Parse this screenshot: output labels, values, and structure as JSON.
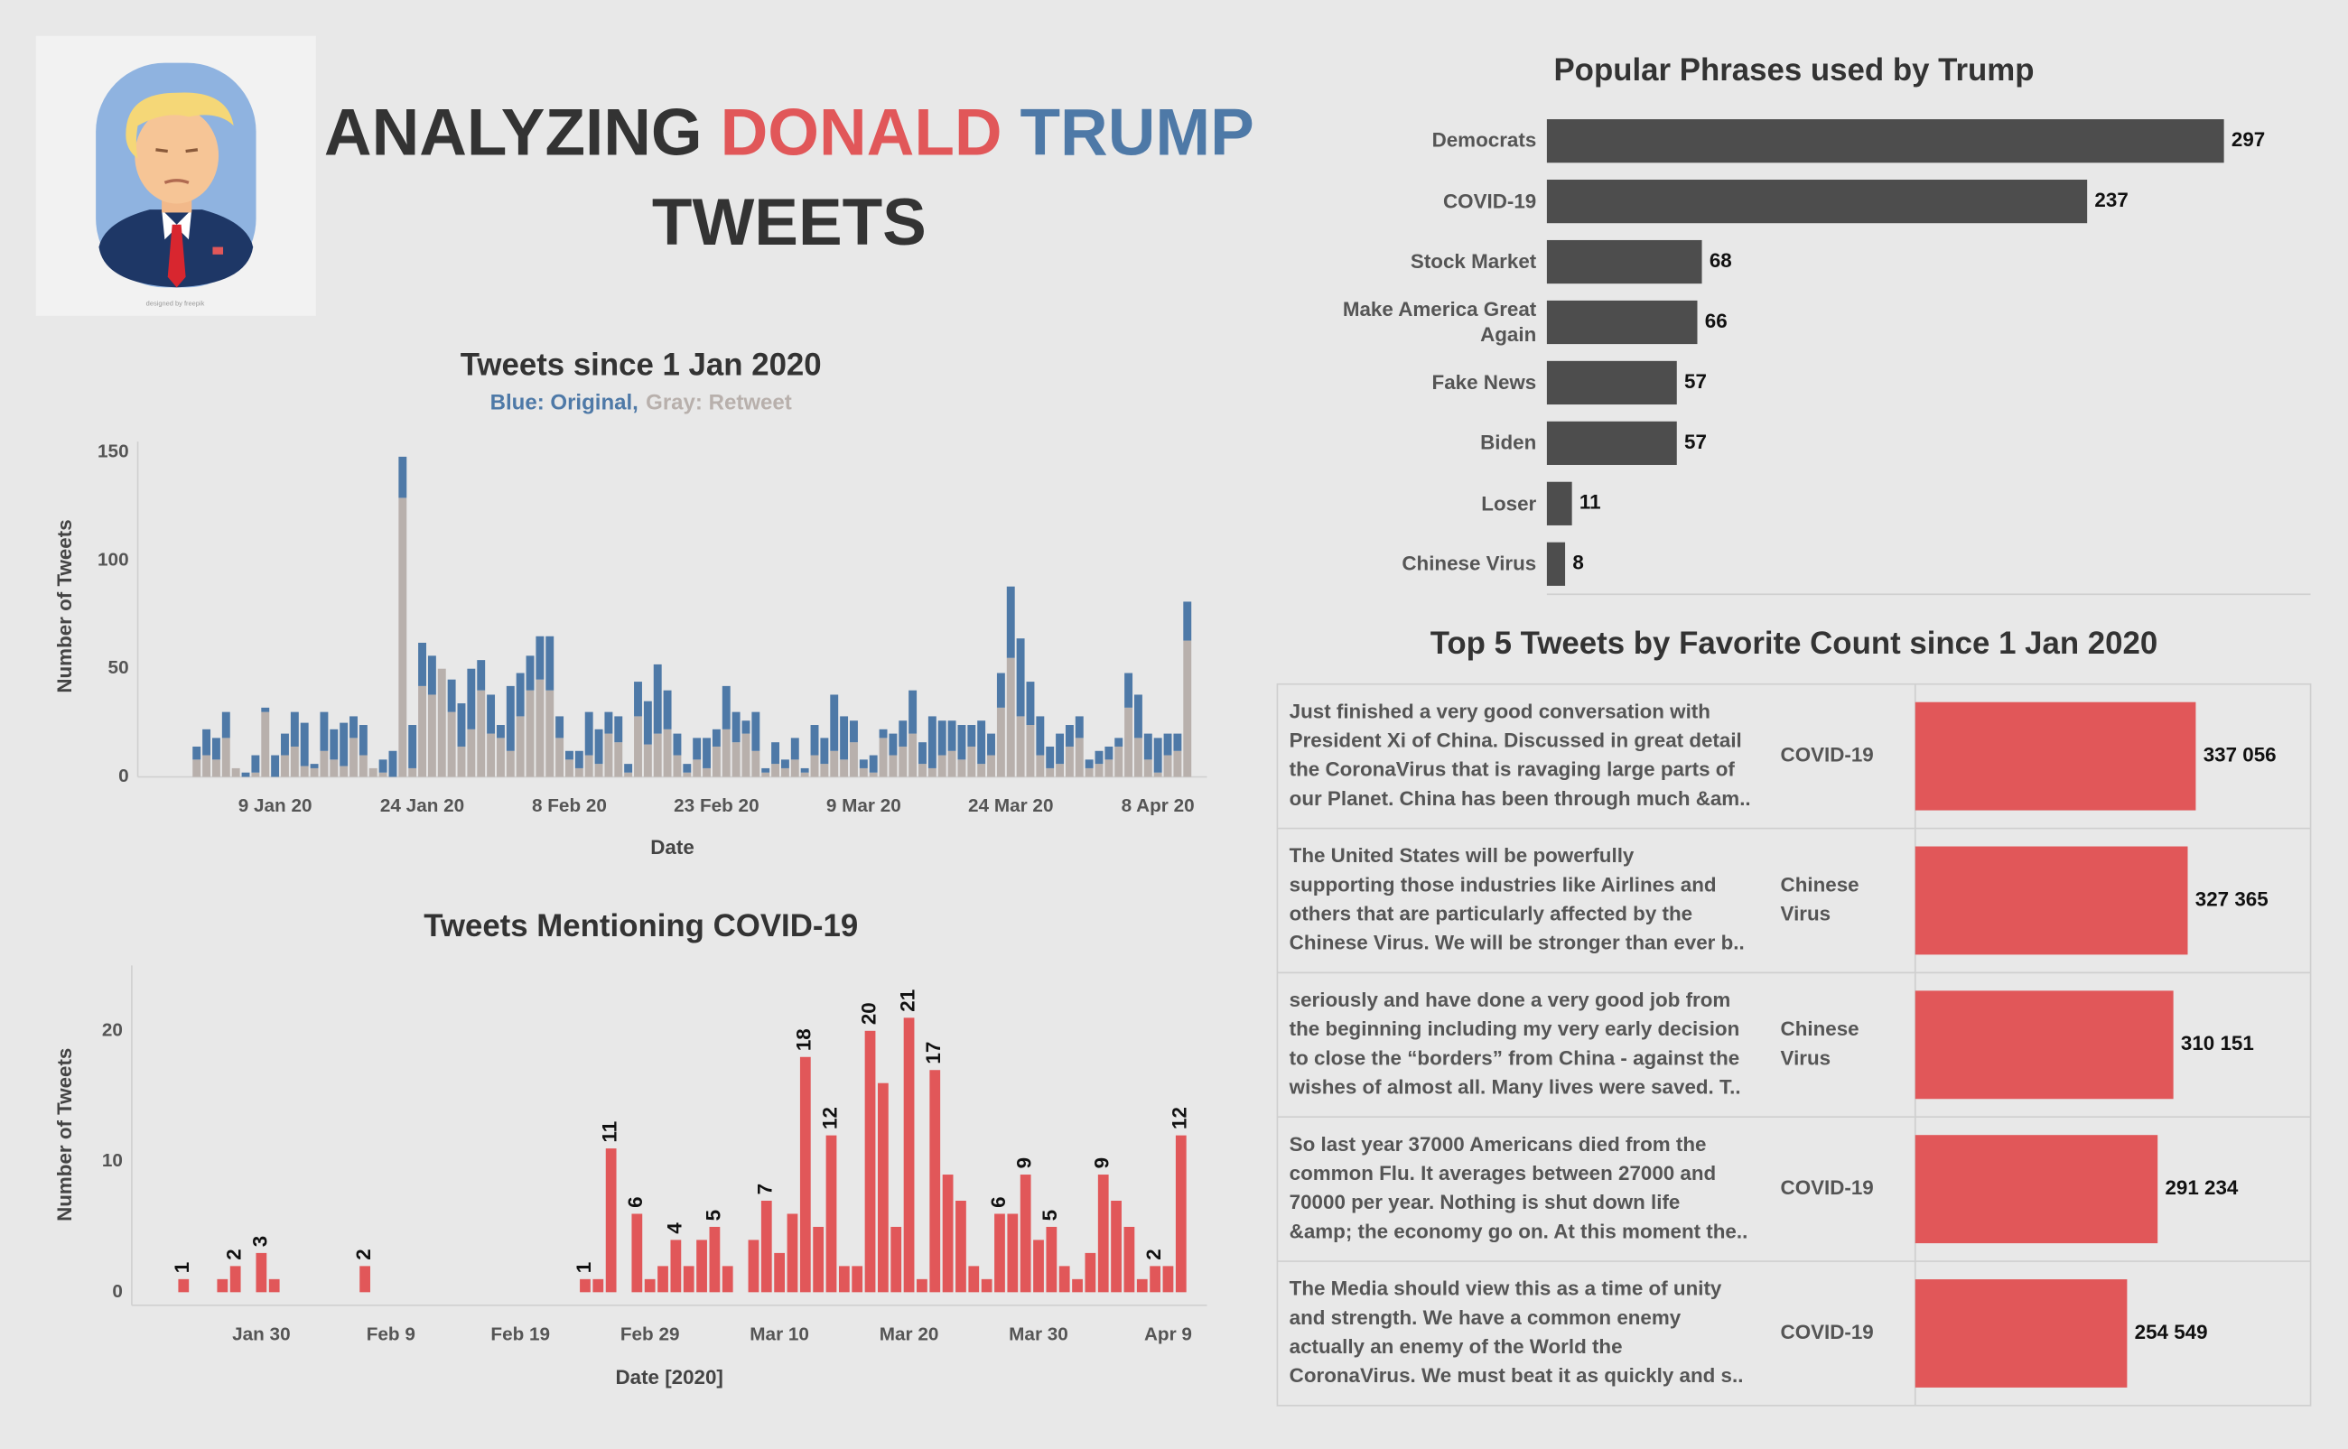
{
  "header": {
    "title_lines": [
      [
        {
          "text": "ANALYZING",
          "color": "#333333"
        },
        {
          "text": "DONALD",
          "color": "#e15759"
        },
        {
          "text": "TRUMP",
          "color": "#4e79a7"
        }
      ],
      [
        {
          "text": "TWEETS",
          "color": "#333333"
        }
      ]
    ],
    "image_credit": "designed by freepik"
  },
  "chart_data": [
    {
      "type": "bar",
      "title": "Tweets since 1 Jan 2020",
      "y_label": "Number of Tweets",
      "x_label": "Date",
      "x": [
        "2020-01-01",
        "2020-01-02",
        "2020-01-03",
        "2020-01-04",
        "2020-01-05",
        "2020-01-06",
        "2020-01-07",
        "2020-01-08",
        "2020-01-09",
        "2020-01-10",
        "2020-01-11",
        "2020-01-12",
        "2020-01-13",
        "2020-01-14",
        "2020-01-15",
        "2020-01-16",
        "2020-01-17",
        "2020-01-18",
        "2020-01-19",
        "2020-01-20",
        "2020-01-21",
        "2020-01-22",
        "2020-01-23",
        "2020-01-24",
        "2020-01-25",
        "2020-01-26",
        "2020-01-27",
        "2020-01-28",
        "2020-01-29",
        "2020-01-30",
        "2020-01-31",
        "2020-02-01",
        "2020-02-02",
        "2020-02-03",
        "2020-02-04",
        "2020-02-05",
        "2020-02-06",
        "2020-02-07",
        "2020-02-08",
        "2020-02-09",
        "2020-02-10",
        "2020-02-11",
        "2020-02-12",
        "2020-02-13",
        "2020-02-14",
        "2020-02-15",
        "2020-02-16",
        "2020-02-17",
        "2020-02-18",
        "2020-02-19",
        "2020-02-20",
        "2020-02-21",
        "2020-02-22",
        "2020-02-23",
        "2020-02-24",
        "2020-02-25",
        "2020-02-26",
        "2020-02-27",
        "2020-02-28",
        "2020-02-29",
        "2020-03-01",
        "2020-03-02",
        "2020-03-03",
        "2020-03-04",
        "2020-03-05",
        "2020-03-06",
        "2020-03-07",
        "2020-03-08",
        "2020-03-09",
        "2020-03-10",
        "2020-03-11",
        "2020-03-12",
        "2020-03-13",
        "2020-03-14",
        "2020-03-15",
        "2020-03-16",
        "2020-03-17",
        "2020-03-18",
        "2020-03-19",
        "2020-03-20",
        "2020-03-21",
        "2020-03-22",
        "2020-03-23",
        "2020-03-24",
        "2020-03-25",
        "2020-03-26",
        "2020-03-27",
        "2020-03-28",
        "2020-03-29",
        "2020-03-30",
        "2020-03-31",
        "2020-04-01",
        "2020-04-02",
        "2020-04-03",
        "2020-04-04",
        "2020-04-05",
        "2020-04-06",
        "2020-04-07",
        "2020-04-08",
        "2020-04-09",
        "2020-04-10",
        "2020-04-11"
      ],
      "series": [
        {
          "name": "Blue: Original,",
          "color": "#4e79a7",
          "values": [
            6,
            12,
            10,
            12,
            0,
            2,
            8,
            2,
            10,
            10,
            16,
            20,
            2,
            18,
            14,
            20,
            10,
            14,
            0,
            6,
            12,
            19,
            20,
            20,
            18,
            0,
            15,
            20,
            28,
            14,
            18,
            6,
            30,
            20,
            16,
            20,
            25,
            10,
            4,
            8,
            20,
            16,
            10,
            12,
            4,
            16,
            20,
            32,
            18,
            10,
            4,
            10,
            14,
            8,
            20,
            14,
            6,
            18,
            2,
            10,
            4,
            10,
            2,
            14,
            12,
            26,
            20,
            10,
            4,
            8,
            4,
            10,
            12,
            20,
            10,
            24,
            16,
            14,
            16,
            10,
            20,
            10,
            16,
            33,
            36,
            20,
            18,
            10,
            14,
            10,
            10,
            4,
            6,
            6,
            4,
            16,
            20,
            12,
            16,
            10,
            8,
            18
          ]
        },
        {
          "name": "Gray: Retweet",
          "color": "#b8b0ac",
          "values": [
            8,
            10,
            8,
            18,
            4,
            0,
            2,
            30,
            0,
            10,
            14,
            5,
            4,
            12,
            8,
            5,
            18,
            10,
            4,
            2,
            0,
            129,
            4,
            42,
            38,
            50,
            30,
            14,
            22,
            40,
            20,
            18,
            12,
            28,
            40,
            45,
            40,
            18,
            8,
            4,
            10,
            6,
            20,
            16,
            2,
            28,
            15,
            20,
            22,
            10,
            2,
            8,
            4,
            14,
            22,
            16,
            20,
            12,
            2,
            6,
            4,
            8,
            2,
            10,
            6,
            12,
            8,
            16,
            4,
            2,
            18,
            10,
            14,
            20,
            6,
            4,
            10,
            12,
            8,
            14,
            6,
            10,
            32,
            55,
            28,
            24,
            10,
            4,
            6,
            14,
            18,
            4,
            6,
            8,
            14,
            32,
            18,
            8,
            2,
            10,
            12,
            63
          ]
        }
      ],
      "xlim": [
        "2019-12-26",
        "2020-04-13"
      ],
      "xticks": [
        {
          "value": "2020-01-09",
          "label": "9 Jan 20"
        },
        {
          "value": "2020-01-24",
          "label": "24 Jan 20"
        },
        {
          "value": "2020-02-08",
          "label": "8 Feb 20"
        },
        {
          "value": "2020-02-23",
          "label": "23 Feb 20"
        },
        {
          "value": "2020-03-09",
          "label": "9 Mar 20"
        },
        {
          "value": "2020-03-24",
          "label": "24 Mar 20"
        },
        {
          "value": "2020-04-08",
          "label": "8 Apr 20"
        }
      ],
      "ylim": [
        0,
        155
      ],
      "yticks": [
        0,
        50,
        100,
        150
      ],
      "stacked": true
    },
    {
      "type": "bar",
      "title": "Tweets Mentioning COVID-19",
      "y_label": "Number of Tweets",
      "x_label": "Date [2020]",
      "color": "#e15759",
      "x": [
        "2020-01-24",
        "2020-01-27",
        "2020-01-28",
        "2020-01-30",
        "2020-01-31",
        "2020-02-07",
        "2020-02-24",
        "2020-02-25",
        "2020-02-26",
        "2020-02-28",
        "2020-02-29",
        "2020-03-01",
        "2020-03-02",
        "2020-03-03",
        "2020-03-04",
        "2020-03-05",
        "2020-03-06",
        "2020-03-08",
        "2020-03-09",
        "2020-03-10",
        "2020-03-11",
        "2020-03-12",
        "2020-03-13",
        "2020-03-14",
        "2020-03-15",
        "2020-03-16",
        "2020-03-17",
        "2020-03-18",
        "2020-03-19",
        "2020-03-20",
        "2020-03-21",
        "2020-03-22",
        "2020-03-23",
        "2020-03-24",
        "2020-03-25",
        "2020-03-26",
        "2020-03-27",
        "2020-03-28",
        "2020-03-29",
        "2020-03-30",
        "2020-03-31",
        "2020-04-01",
        "2020-04-02",
        "2020-04-03",
        "2020-04-04",
        "2020-04-05",
        "2020-04-06",
        "2020-04-07",
        "2020-04-08",
        "2020-04-09",
        "2020-04-10"
      ],
      "values": [
        1,
        1,
        2,
        3,
        1,
        2,
        1,
        1,
        11,
        6,
        1,
        2,
        4,
        2,
        4,
        5,
        2,
        4,
        7,
        3,
        6,
        18,
        5,
        12,
        2,
        2,
        20,
        16,
        5,
        21,
        1,
        17,
        9,
        7,
        2,
        1,
        6,
        6,
        9,
        4,
        5,
        2,
        1,
        3,
        9,
        7,
        5,
        1,
        2,
        2,
        12
      ],
      "value_labels": [
        "1",
        null,
        "2",
        "3",
        null,
        "2",
        "1",
        null,
        "11",
        "6",
        null,
        null,
        "4",
        null,
        null,
        "5",
        null,
        null,
        "7",
        null,
        null,
        "18",
        null,
        "12",
        null,
        null,
        "20",
        null,
        null,
        "21",
        null,
        "17",
        null,
        null,
        null,
        null,
        "6",
        null,
        "9",
        null,
        "5",
        null,
        null,
        null,
        "9",
        null,
        null,
        null,
        "2",
        null,
        "12"
      ],
      "xlim": [
        "2020-01-20",
        "2020-04-12"
      ],
      "xticks": [
        {
          "value": "2020-01-30",
          "label": "Jan 30"
        },
        {
          "value": "2020-02-09",
          "label": "Feb 9"
        },
        {
          "value": "2020-02-19",
          "label": "Feb 19"
        },
        {
          "value": "2020-02-29",
          "label": "Feb 29"
        },
        {
          "value": "2020-03-10",
          "label": "Mar 10"
        },
        {
          "value": "2020-03-20",
          "label": "Mar 20"
        },
        {
          "value": "2020-03-30",
          "label": "Mar 30"
        },
        {
          "value": "2020-04-09",
          "label": "Apr 9"
        }
      ],
      "ylim": [
        -1,
        25
      ],
      "yticks": [
        0,
        10,
        20
      ]
    },
    {
      "type": "barh",
      "title": "Popular Phrases used by Trump",
      "color": "#4d4d4d",
      "categories": [
        "Democrats",
        "COVID-19",
        "Stock Market",
        "Make America Great Again",
        "Fake News",
        "Biden",
        "Loser",
        "Chinese Virus"
      ],
      "values": [
        297,
        237,
        68,
        66,
        57,
        57,
        11,
        8
      ],
      "xlim": [
        0,
        335
      ]
    },
    {
      "type": "barh",
      "title": "Top 5 Tweets by Favorite Count since 1 Jan 2020",
      "color": "#e15759",
      "categories": [
        [
          "Just finished a very good conversation with",
          "President Xi of China. Discussed in great detail",
          "the CoronaVirus that is ravaging large parts of",
          "our Planet. China has been through much &am.."
        ],
        [
          "The United States will be powerfully",
          "supporting those industries like Airlines and",
          "others that are particularly affected by the",
          "Chinese Virus. We will be stronger than ever b.."
        ],
        [
          "seriously and have done a very good job from",
          "the beginning including my very early decision",
          "to close the “borders” from China - against the",
          "wishes of almost all. Many lives were saved. T.."
        ],
        [
          "So last year 37000 Americans died from the",
          "common Flu. It averages between 27000 and",
          "70000 per year. Nothing is shut down life",
          "&amp; the economy go on. At this moment the.."
        ],
        [
          "The Media should view this as a time of unity",
          "and strength. We have a common enemy",
          "actually an enemy of the World the",
          "CoronaVirus. We must beat it as quickly and s.."
        ]
      ],
      "tags": [
        [
          "COVID-19"
        ],
        [
          "Chinese",
          "Virus"
        ],
        [
          "Chinese",
          "Virus"
        ],
        [
          "COVID-19"
        ],
        [
          "COVID-19"
        ]
      ],
      "values": [
        337056,
        327365,
        310151,
        291234,
        254549
      ],
      "value_labels": [
        "337 056",
        "327 365",
        "310 151",
        "291 234",
        "254 549"
      ],
      "xlim": [
        0,
        475000
      ]
    }
  ]
}
